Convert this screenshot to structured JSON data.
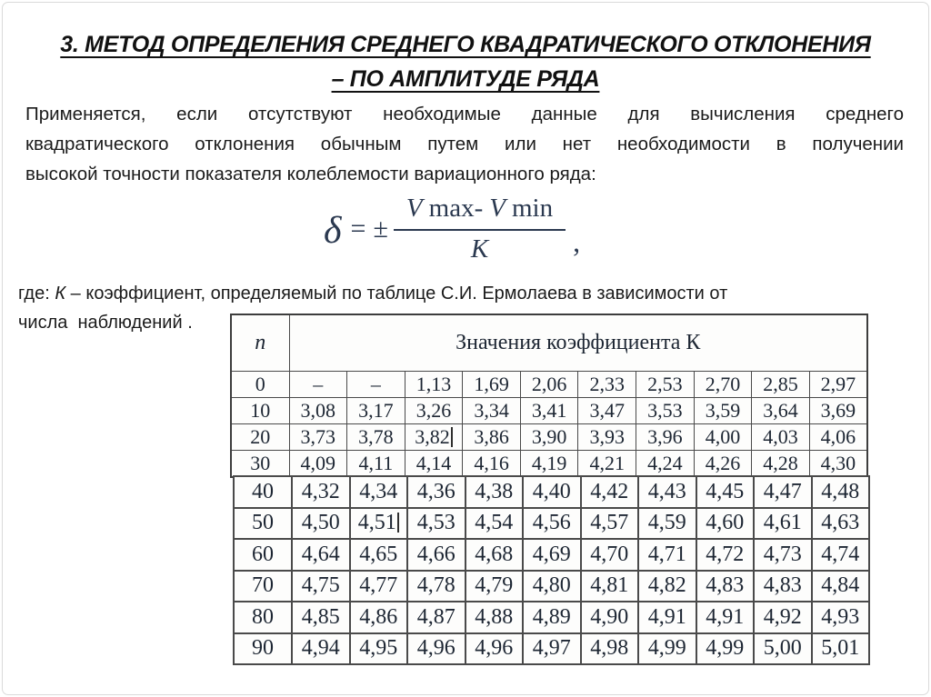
{
  "slide": {
    "title_line1": "3. МЕТОД ОПРЕДЕЛЕНИЯ СРЕДНЕГО КВАДРАТИЧЕСКОГО ОТКЛОНЕНИЯ",
    "title_line2": "– ПО АМПЛИТУДЕ РЯДА",
    "intro_lines": [
      "Применяется,  если  отсутствуют  необходимые  данные  для  вычисления  среднего",
      "квадратического  отклонения  обычным  путем  или  нет  необходимости  в  получении",
      "высокой точности показателя колеблемости вариационного ряда:"
    ],
    "formula": {
      "delta": "δ",
      "equals": "=",
      "plus_minus": "±",
      "num_v1": "V",
      "num_max": "max-",
      "num_v2": "V",
      "num_min": "min",
      "denominator": "K",
      "comma": ","
    },
    "where": {
      "prefix": "где: ",
      "k": "К",
      "rest": " – коэффициент,  определяемый по таблице С.И. Ермолаева в зависимости от",
      "line2": "числа  наблюдений ."
    }
  },
  "table": {
    "n_header": "n",
    "k_header": "Значения коэффициента К",
    "upper_rows": [
      [
        "0",
        "–",
        "–",
        "1,13",
        "1,69",
        "2,06",
        "2,33",
        "2,53",
        "2,70",
        "2,85",
        "2,97"
      ],
      [
        "10",
        "3,08",
        "3,17",
        "3,26",
        "3,34",
        "3,41",
        "3,47",
        "3,53",
        "3,59",
        "3,64",
        "3,69"
      ],
      [
        "20",
        "3,73",
        "3,78",
        "3,82",
        "3,86",
        "3,90",
        "3,93",
        "3,96",
        "4,00",
        "4,03",
        "4,06"
      ],
      [
        "30",
        "4,09",
        "4,11",
        "4,14",
        "4,16",
        "4,19",
        "4,21",
        "4,24",
        "4,26",
        "4,28",
        "4,30"
      ]
    ],
    "lower_rows": [
      [
        "40",
        "4,32",
        "4,34",
        "4,36",
        "4,38",
        "4,40",
        "4,42",
        "4,43",
        "4,45",
        "4,47",
        "4,48"
      ],
      [
        "50",
        "4,50",
        "4,51",
        "4,53",
        "4,54",
        "4,56",
        "4,57",
        "4,59",
        "4,60",
        "4,61",
        "4,63"
      ],
      [
        "60",
        "4,64",
        "4,65",
        "4,66",
        "4,68",
        "4,69",
        "4,70",
        "4,71",
        "4,72",
        "4,73",
        "4,74"
      ],
      [
        "70",
        "4,75",
        "4,77",
        "4,78",
        "4,79",
        "4,80",
        "4,81",
        "4,82",
        "4,83",
        "4,83",
        "4,84"
      ],
      [
        "80",
        "4,85",
        "4,86",
        "4,87",
        "4,88",
        "4,89",
        "4,90",
        "4,91",
        "4,91",
        "4,92",
        "4,93"
      ],
      [
        "90",
        "4,94",
        "4,95",
        "4,96",
        "4,96",
        "4,97",
        "4,98",
        "4,99",
        "4,99",
        "5,00",
        "5,01"
      ]
    ],
    "carets": [
      {
        "group": "upper",
        "row": 2,
        "col": 3
      },
      {
        "group": "lower",
        "row": 1,
        "col": 2
      }
    ]
  },
  "colors": {
    "text": "#1c1c1c",
    "formula_ink": "#2b3950",
    "table_ink": "#1d2633",
    "table_border": "#4a4a4a",
    "frame": "#dadada"
  }
}
